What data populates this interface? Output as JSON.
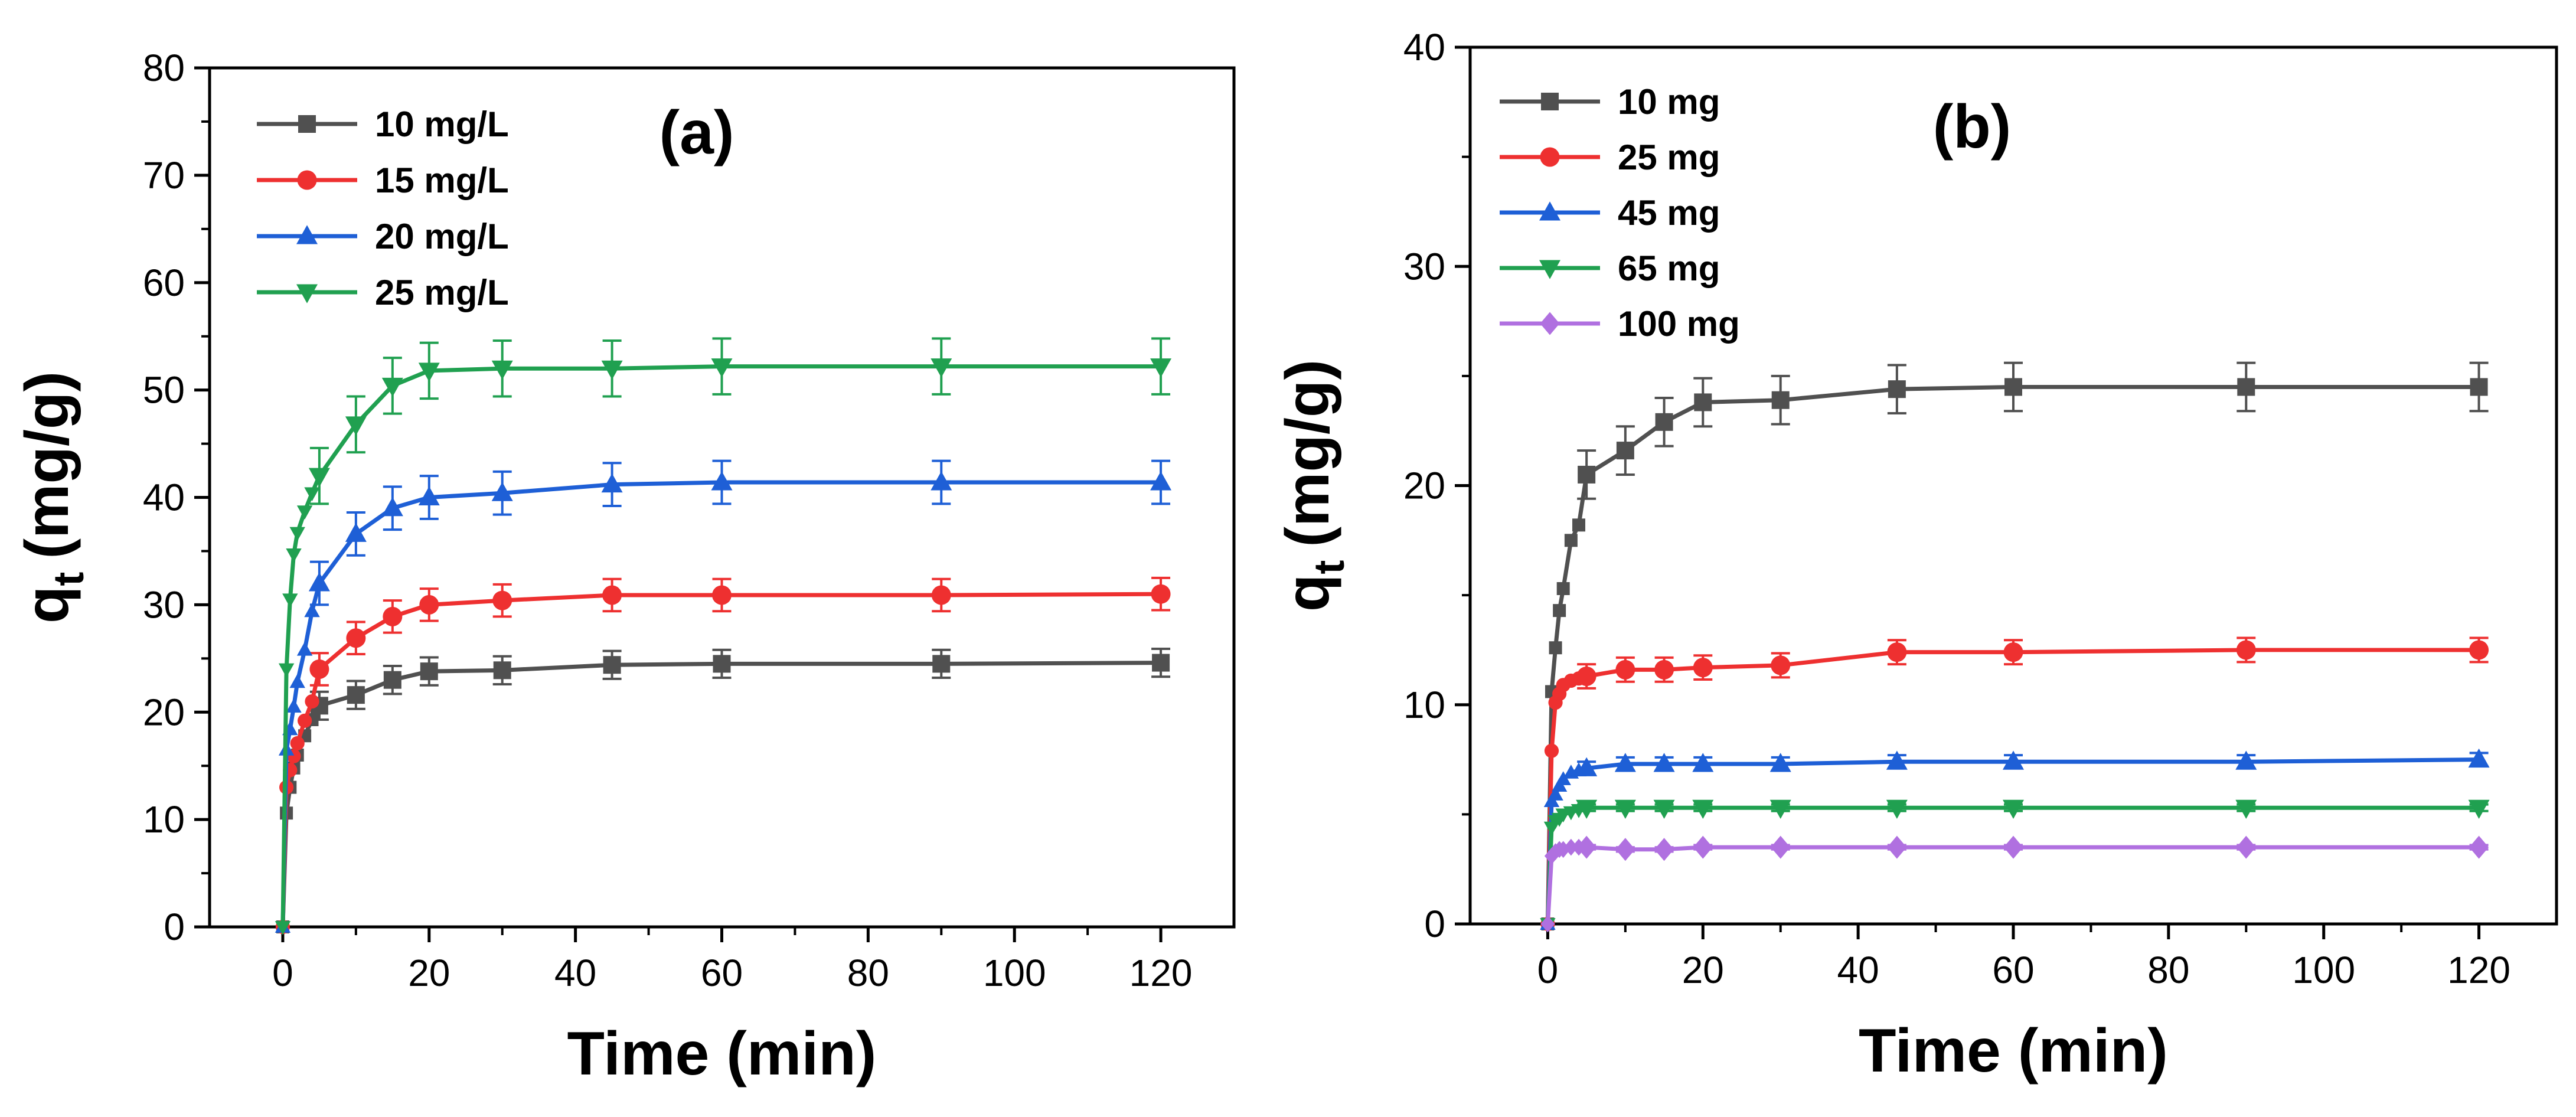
{
  "chart_data": [
    {
      "type": "line",
      "panel_label": "(a)",
      "xlabel": "Time (min)",
      "ylabel_main": "q",
      "ylabel_sub": "t",
      "ylabel_unit": "(mg/g)",
      "xlim": [
        -10,
        130
      ],
      "ylim": [
        0,
        80
      ],
      "xticks": [
        0,
        20,
        40,
        60,
        80,
        100,
        120
      ],
      "yticks": [
        0,
        10,
        20,
        30,
        40,
        50,
        60,
        70,
        80
      ],
      "grid": false,
      "legend_position": "top-left",
      "x": [
        0,
        0.5,
        1,
        1.5,
        2,
        3,
        4,
        5,
        10,
        15,
        20,
        30,
        45,
        60,
        90,
        120
      ],
      "series": [
        {
          "name": "10 mg/L",
          "color": "#505050",
          "marker": "square",
          "values": [
            0,
            10.6,
            13.0,
            14.8,
            16.0,
            17.8,
            19.3,
            20.6,
            21.6,
            23.0,
            23.8,
            23.9,
            24.4,
            24.5,
            24.5,
            24.6
          ],
          "error": 1.3
        },
        {
          "name": "15 mg/L",
          "color": "#ee3030",
          "marker": "circle",
          "values": [
            0,
            13.0,
            14.6,
            15.9,
            17.1,
            19.2,
            21.0,
            24.0,
            26.9,
            28.9,
            30.0,
            30.4,
            30.9,
            30.9,
            30.9,
            31.0
          ],
          "error": 1.5
        },
        {
          "name": "20 mg/L",
          "color": "#1e5fd6",
          "marker": "triangle-up",
          "values": [
            0,
            16.5,
            18.4,
            20.5,
            22.8,
            25.8,
            29.4,
            32.0,
            36.6,
            39.0,
            40.0,
            40.4,
            41.2,
            41.4,
            41.4,
            41.4
          ],
          "error": 2.0
        },
        {
          "name": "25 mg/L",
          "color": "#20a050",
          "marker": "triangle-down",
          "values": [
            0,
            24.0,
            30.5,
            34.7,
            36.7,
            38.7,
            40.4,
            42.0,
            46.8,
            50.4,
            51.8,
            52.0,
            52.0,
            52.2,
            52.2,
            52.2
          ],
          "error": 2.6
        }
      ]
    },
    {
      "type": "line",
      "panel_label": "(b)",
      "xlabel": "Time (min)",
      "ylabel_main": "q",
      "ylabel_sub": "t",
      "ylabel_unit": "(mg/g)",
      "xlim": [
        -10,
        130
      ],
      "ylim": [
        0,
        40
      ],
      "xticks": [
        0,
        20,
        40,
        60,
        80,
        100,
        120
      ],
      "yticks": [
        0,
        10,
        20,
        30,
        40
      ],
      "grid": false,
      "legend_position": "top-left",
      "x": [
        0,
        0.5,
        1,
        1.5,
        2,
        3,
        4,
        5,
        10,
        15,
        20,
        30,
        45,
        60,
        90,
        120
      ],
      "series": [
        {
          "name": "10 mg",
          "color": "#505050",
          "marker": "square",
          "values": [
            0,
            10.6,
            12.6,
            14.3,
            15.3,
            17.5,
            18.2,
            20.5,
            21.6,
            22.9,
            23.8,
            23.9,
            24.4,
            24.5,
            24.5,
            24.5
          ],
          "error": 1.1
        },
        {
          "name": "25 mg",
          "color": "#ee3030",
          "marker": "circle",
          "values": [
            0,
            7.9,
            10.1,
            10.5,
            10.9,
            11.1,
            11.2,
            11.3,
            11.6,
            11.6,
            11.7,
            11.8,
            12.4,
            12.4,
            12.5,
            12.5
          ],
          "error": 0.55
        },
        {
          "name": "45 mg",
          "color": "#1e5fd6",
          "marker": "triangle-up",
          "values": [
            0,
            5.6,
            5.9,
            6.3,
            6.6,
            6.9,
            7.0,
            7.1,
            7.3,
            7.3,
            7.3,
            7.3,
            7.4,
            7.4,
            7.4,
            7.5
          ],
          "error": 0.3
        },
        {
          "name": "65 mg",
          "color": "#20a050",
          "marker": "triangle-down",
          "values": [
            0,
            4.4,
            4.7,
            4.8,
            5.0,
            5.1,
            5.2,
            5.3,
            5.3,
            5.3,
            5.3,
            5.3,
            5.3,
            5.3,
            5.3,
            5.3
          ],
          "error": 0.15
        },
        {
          "name": "100 mg",
          "color": "#b070e0",
          "marker": "diamond",
          "values": [
            0,
            3.1,
            3.3,
            3.4,
            3.4,
            3.5,
            3.5,
            3.5,
            3.4,
            3.4,
            3.5,
            3.5,
            3.5,
            3.5,
            3.5,
            3.5
          ],
          "error": 0.1
        }
      ]
    }
  ]
}
